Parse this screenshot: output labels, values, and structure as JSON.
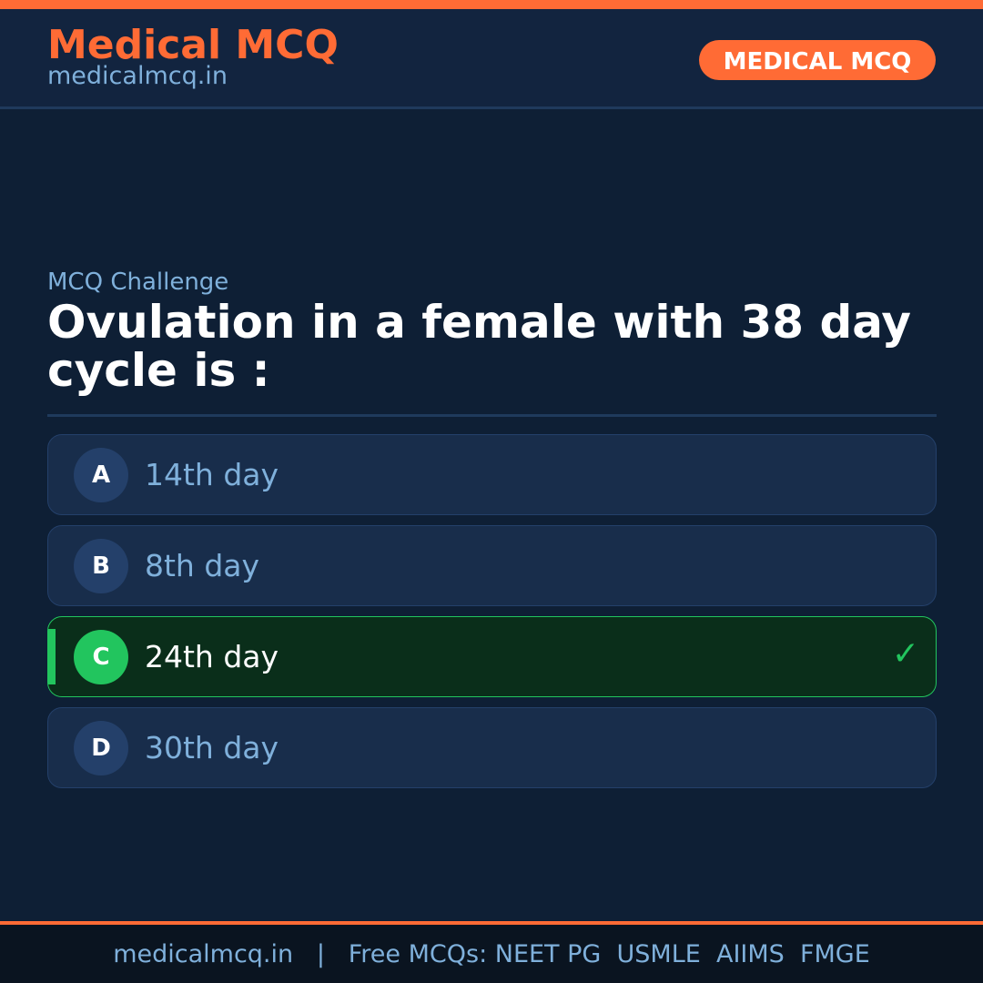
{
  "header": {
    "brand": "Medical MCQ",
    "site": "medicalmcq.in",
    "badge": "MEDICAL MCQ"
  },
  "question": {
    "label": "MCQ Challenge",
    "text": "Ovulation in a female with 38 day cycle is :"
  },
  "options": [
    {
      "letter": "A",
      "text": "14th day",
      "correct": false
    },
    {
      "letter": "B",
      "text": "8th day",
      "correct": false
    },
    {
      "letter": "C",
      "text": "24th day",
      "correct": true
    },
    {
      "letter": "D",
      "text": "30th day",
      "correct": false
    }
  ],
  "check_icon": "✓",
  "footer": {
    "text": "medicalmcq.in   |   Free MCQs: NEET PG  USMLE  AIIMS  FMGE"
  },
  "colors": {
    "accent": "#ff6b35",
    "correct": "#22c55e",
    "background": "#0e1f35"
  }
}
